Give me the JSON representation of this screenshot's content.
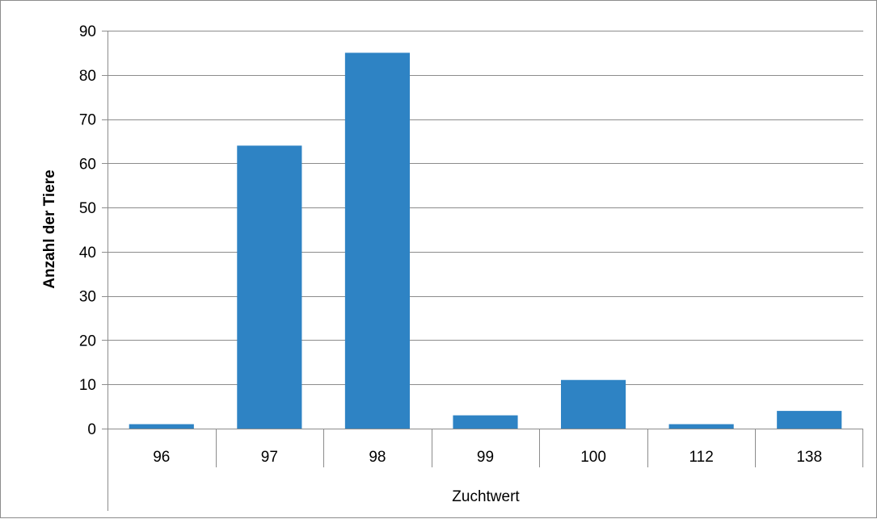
{
  "chart_data": {
    "type": "bar",
    "categories": [
      "96",
      "97",
      "98",
      "99",
      "100",
      "112",
      "138"
    ],
    "values": [
      1,
      64,
      85,
      3,
      11,
      1,
      4
    ],
    "title": "",
    "xlabel": "Zuchtwert",
    "ylabel": "Anzahl der Tiere",
    "ylim": [
      0,
      90
    ],
    "yticks": [
      0,
      10,
      20,
      30,
      40,
      50,
      60,
      70,
      80,
      90
    ],
    "grid": true,
    "bar_color": "#2e83c4",
    "grid_color": "#8c8c8c"
  }
}
